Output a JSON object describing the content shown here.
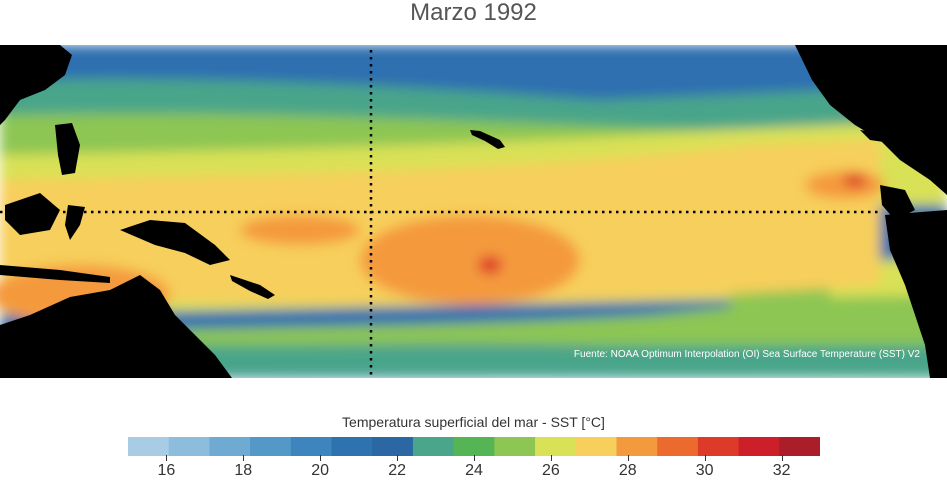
{
  "title": "Marzo 1992",
  "source_note": "Fuente: NOAA Optimum Interpolation (OI) Sea Surface Temperature (SST) V2",
  "colorbar": {
    "label": "Temperatura superficial del mar - SST  [°C]",
    "min": 15,
    "max": 33,
    "tick_labels": [
      "16",
      "18",
      "20",
      "22",
      "24",
      "26",
      "28",
      "30",
      "32"
    ],
    "colors": [
      "#a8cce4",
      "#8cbddc",
      "#6faad3",
      "#5498c8",
      "#3e85bd",
      "#2e72b0",
      "#2a67a3",
      "#4aa58a",
      "#55b555",
      "#8dc653",
      "#d9e157",
      "#f7cf5c",
      "#f49a3e",
      "#ec6a2e",
      "#dd3a2a",
      "#cd1f2a",
      "#ab1d28"
    ]
  },
  "map_colors": {
    "land": "#000000",
    "cold": "#2e6fb0",
    "cool": "#4aa58a",
    "mid": "#8dc653",
    "warm": "#d9e157",
    "warmer": "#f7cf5c",
    "hot": "#f49a3e",
    "hottest": "#dd3a2a"
  }
}
